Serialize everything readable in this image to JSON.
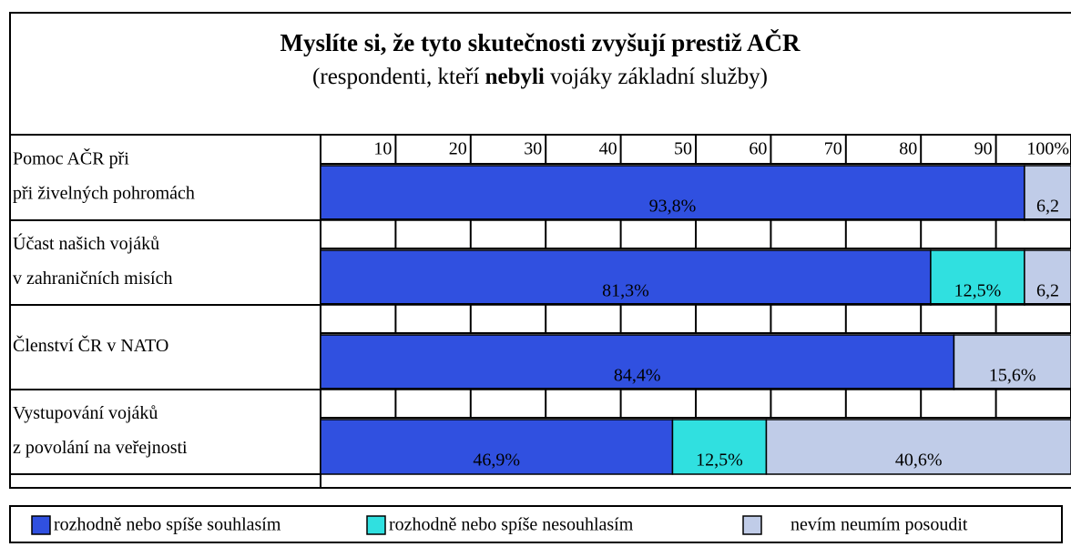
{
  "chart_data": {
    "type": "stacked-bar-horizontal",
    "title": "Myslíte si, že tyto skutečnosti zvyšují prestiž AČR",
    "subtitle": [
      "(respondenti, kteří ",
      "nebyli",
      " vojáky základní služby)"
    ],
    "categories": [
      [
        "Pomoc AČR při",
        "při živelných pohromách"
      ],
      [
        "Účast našich vojáků",
        "v zahraničních misích"
      ],
      [
        "Členství ČR v NATO"
      ],
      [
        "Vystupování vojáků",
        " z povolání na veřejnosti"
      ]
    ],
    "series": [
      {
        "name": "rozhodně nebo spíše souhlasím",
        "color": "#3050e0",
        "values": [
          93.8,
          81.3,
          84.4,
          46.9
        ],
        "value_labels": [
          "93,8%",
          "81,3%",
          "84,4%",
          "46,9%"
        ]
      },
      {
        "name": "rozhodně nebo spíše nesouhlasím",
        "color": "#30e0e0",
        "values": [
          null,
          12.5,
          null,
          12.5
        ],
        "value_labels": [
          null,
          "12,5%",
          null,
          "12,5%"
        ]
      },
      {
        "name": "nevím neumím posoudit",
        "color": "#c0cce8",
        "values": [
          6.2,
          6.2,
          15.6,
          40.6
        ],
        "value_labels": [
          "6,2",
          "6,2",
          "15,6%",
          "40,6%"
        ]
      }
    ],
    "xlim": [
      0,
      100
    ],
    "xticks": [
      10,
      20,
      30,
      40,
      50,
      60,
      70,
      80,
      90,
      {
        "value": 100,
        "label": "100%"
      }
    ]
  }
}
